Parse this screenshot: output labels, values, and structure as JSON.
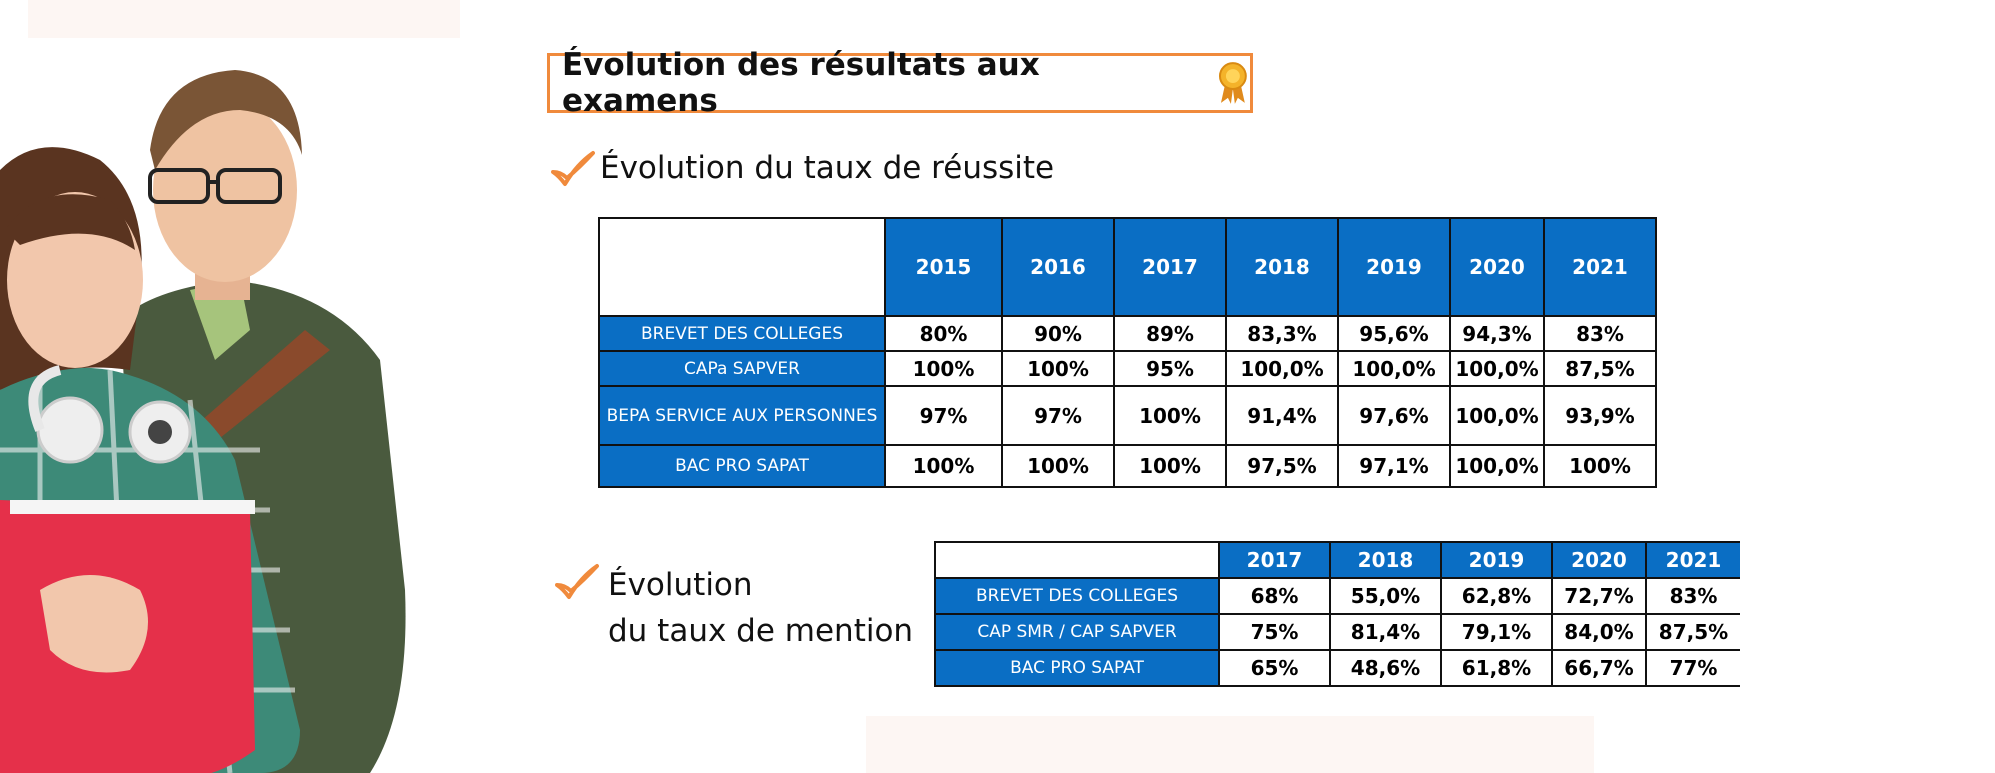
{
  "title": "Évolution des résultats aux examens",
  "section1": {
    "label": "Évolution du taux de réussite"
  },
  "section2": {
    "line1": "Évolution",
    "line2": "du taux de mention"
  },
  "table1": {
    "years": [
      "2015",
      "2016",
      "2017",
      "2018",
      "2019",
      "2020",
      "2021"
    ],
    "rows": [
      {
        "label": "BREVET DES COLLEGES",
        "values": [
          "80%",
          "90%",
          "89%",
          "83,3%",
          "95,6%",
          "94,3%",
          "83%"
        ]
      },
      {
        "label": "CAPa SAPVER",
        "values": [
          "100%",
          "100%",
          "95%",
          "100,0%",
          "100,0%",
          "100,0%",
          "87,5%"
        ]
      },
      {
        "label": "BEPA SERVICE AUX PERSONNES",
        "values": [
          "97%",
          "97%",
          "100%",
          "91,4%",
          "97,6%",
          "100,0%",
          "93,9%"
        ]
      },
      {
        "label": "BAC PRO SAPAT",
        "values": [
          "100%",
          "100%",
          "100%",
          "97,5%",
          "97,1%",
          "100,0%",
          "100%"
        ]
      }
    ]
  },
  "table2": {
    "years": [
      "2017",
      "2018",
      "2019",
      "2020",
      "2021"
    ],
    "rows": [
      {
        "label": "BREVET DES COLLEGES",
        "values": [
          "68%",
          "55,0%",
          "62,8%",
          "72,7%",
          "83%"
        ]
      },
      {
        "label": "CAP SMR / CAP SAPVER",
        "values": [
          "75%",
          "81,4%",
          "79,1%",
          "84,0%",
          "87,5%"
        ]
      },
      {
        "label": "BAC PRO SAPAT",
        "values": [
          "65%",
          "48,6%",
          "61,8%",
          "66,7%",
          "77%"
        ]
      }
    ]
  },
  "colors": {
    "accent_orange": "#f08a3c",
    "header_blue": "#0a6ec4"
  },
  "icons": [
    "medal-icon",
    "checkmark-icon"
  ]
}
